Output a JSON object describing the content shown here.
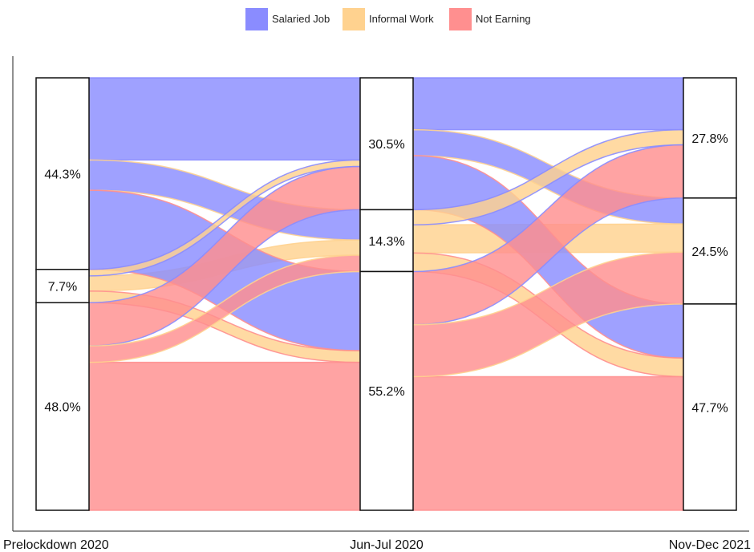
{
  "legend": {
    "items": [
      {
        "label": "Salaried Job",
        "color": "#8a8cff"
      },
      {
        "label": "Informal Work",
        "color": "#ffd28f"
      },
      {
        "label": "Not Earning",
        "color": "#ff8f8f"
      }
    ]
  },
  "chart_data": {
    "type": "alluvial",
    "title": "",
    "legend_position": "top",
    "grid": false,
    "axes": [
      "Prelockdown 2020",
      "Jun-Jul 2020",
      "Nov-Dec 2021"
    ],
    "categories": [
      "Salaried Job",
      "Informal Work",
      "Not Earning"
    ],
    "colors": {
      "Salaried Job": "#8a8cff",
      "Informal Work": "#ffd28f",
      "Not Earning": "#ff8f8f"
    },
    "stages": [
      {
        "axis": "Prelockdown 2020",
        "values": {
          "Salaried Job": 44.3,
          "Informal Work": 7.7,
          "Not Earning": 48.0
        },
        "labels": {
          "Salaried Job": "44.3%",
          "Informal Work": "7.7%",
          "Not Earning": "48.0%"
        }
      },
      {
        "axis": "Jun-Jul 2020",
        "values": {
          "Salaried Job": 30.5,
          "Informal Work": 14.3,
          "Not Earning": 55.2
        },
        "labels": {
          "Salaried Job": "30.5%",
          "Informal Work": "14.3%",
          "Not Earning": "55.2%"
        }
      },
      {
        "axis": "Nov-Dec 2021",
        "values": {
          "Salaried Job": 27.8,
          "Informal Work": 24.5,
          "Not Earning": 47.7
        },
        "labels": {
          "Salaried Job": "27.8%",
          "Informal Work": "24.5%",
          "Not Earning": "47.7%"
        }
      }
    ],
    "flows": [
      {
        "from_axis": 0,
        "to_axis": 1,
        "from": "Salaried Job",
        "to": "Salaried Job",
        "value": 19.0
      },
      {
        "from_axis": 0,
        "to_axis": 1,
        "from": "Salaried Job",
        "to": "Informal Work",
        "value": 7.0
      },
      {
        "from_axis": 0,
        "to_axis": 1,
        "from": "Salaried Job",
        "to": "Not Earning",
        "value": 18.3
      },
      {
        "from_axis": 0,
        "to_axis": 1,
        "from": "Informal Work",
        "to": "Salaried Job",
        "value": 1.5
      },
      {
        "from_axis": 0,
        "to_axis": 1,
        "from": "Informal Work",
        "to": "Informal Work",
        "value": 3.5
      },
      {
        "from_axis": 0,
        "to_axis": 1,
        "from": "Informal Work",
        "to": "Not Earning",
        "value": 2.7
      },
      {
        "from_axis": 0,
        "to_axis": 1,
        "from": "Not Earning",
        "to": "Salaried Job",
        "value": 10.0
      },
      {
        "from_axis": 0,
        "to_axis": 1,
        "from": "Not Earning",
        "to": "Informal Work",
        "value": 3.8
      },
      {
        "from_axis": 0,
        "to_axis": 1,
        "from": "Not Earning",
        "to": "Not Earning",
        "value": 34.2
      },
      {
        "from_axis": 1,
        "to_axis": 2,
        "from": "Salaried Job",
        "to": "Salaried Job",
        "value": 12.0
      },
      {
        "from_axis": 1,
        "to_axis": 2,
        "from": "Salaried Job",
        "to": "Informal Work",
        "value": 6.0
      },
      {
        "from_axis": 1,
        "to_axis": 2,
        "from": "Salaried Job",
        "to": "Not Earning",
        "value": 12.5
      },
      {
        "from_axis": 1,
        "to_axis": 2,
        "from": "Informal Work",
        "to": "Salaried Job",
        "value": 3.5
      },
      {
        "from_axis": 1,
        "to_axis": 2,
        "from": "Informal Work",
        "to": "Informal Work",
        "value": 6.5
      },
      {
        "from_axis": 1,
        "to_axis": 2,
        "from": "Informal Work",
        "to": "Not Earning",
        "value": 4.3
      },
      {
        "from_axis": 1,
        "to_axis": 2,
        "from": "Not Earning",
        "to": "Salaried Job",
        "value": 12.3
      },
      {
        "from_axis": 1,
        "to_axis": 2,
        "from": "Not Earning",
        "to": "Informal Work",
        "value": 12.0
      },
      {
        "from_axis": 1,
        "to_axis": 2,
        "from": "Not Earning",
        "to": "Not Earning",
        "value": 30.9
      }
    ]
  }
}
